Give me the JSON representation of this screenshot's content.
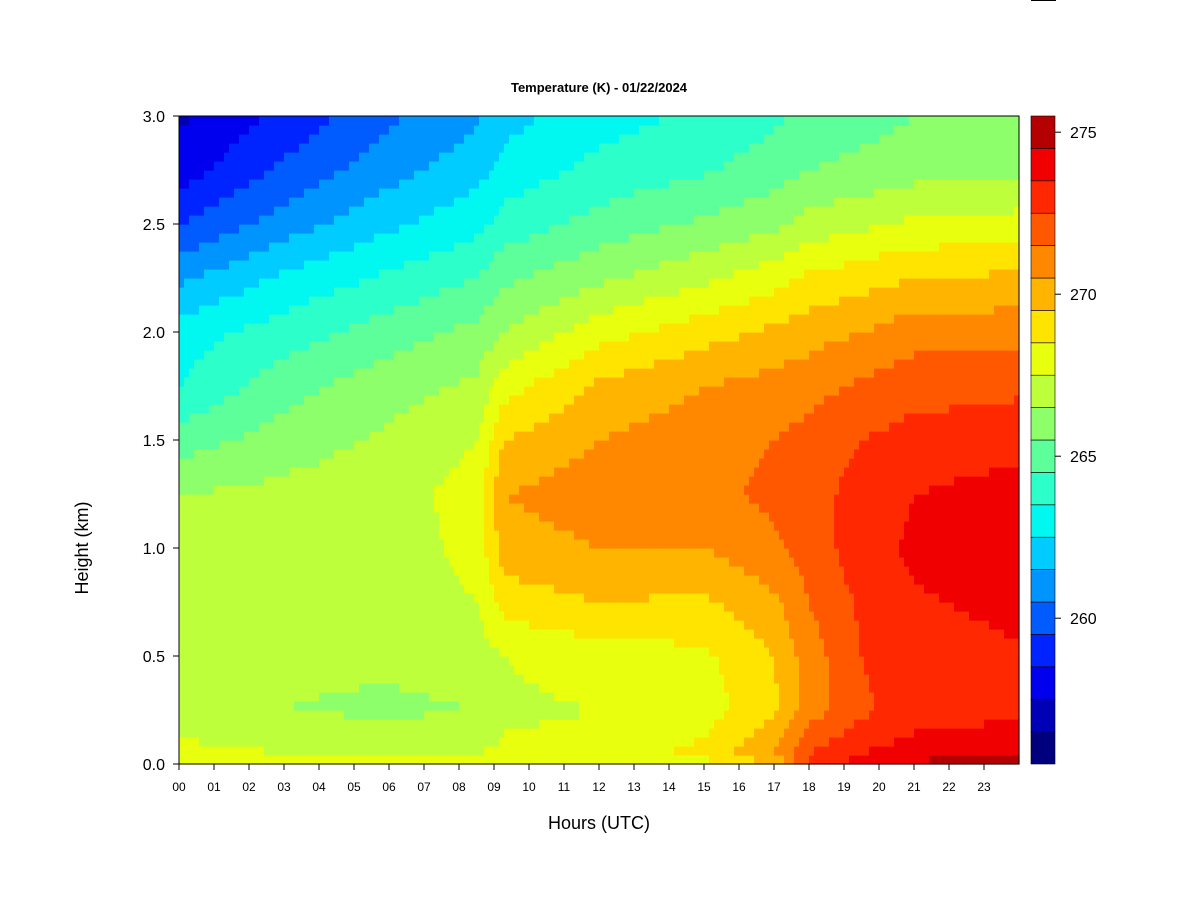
{
  "chart_data": {
    "type": "heatmap",
    "title": "Temperature (K) - 01/22/2024",
    "xlabel": "Hours (UTC)",
    "ylabel": "Height (km)",
    "x_ticks": [
      "00",
      "01",
      "02",
      "03",
      "04",
      "05",
      "06",
      "07",
      "08",
      "09",
      "10",
      "11",
      "12",
      "13",
      "14",
      "15",
      "16",
      "17",
      "18",
      "19",
      "20",
      "21",
      "22",
      "23"
    ],
    "y_ticks": [
      "0.0",
      "0.5",
      "1.0",
      "1.5",
      "2.0",
      "2.5",
      "3.0"
    ],
    "xlim": [
      0,
      24
    ],
    "ylim": [
      0,
      3.0
    ],
    "colorbar": {
      "ticks": [
        "260",
        "265",
        "270",
        "275"
      ],
      "range": [
        256,
        276
      ],
      "levels": [
        256,
        257,
        258,
        259,
        260,
        261,
        262,
        263,
        264,
        265,
        266,
        267,
        268,
        269,
        270,
        271,
        272,
        273,
        274,
        275,
        276
      ],
      "colors": [
        "#00007f",
        "#0000b6",
        "#0000ee",
        "#0024ff",
        "#005cff",
        "#0094ff",
        "#00ccff",
        "#00f8f0",
        "#2cffca",
        "#5cff9a",
        "#8cff6a",
        "#bcff3a",
        "#e8ff0e",
        "#ffe400",
        "#ffb400",
        "#ff8800",
        "#ff5800",
        "#ff2800",
        "#f00000",
        "#b40000"
      ]
    },
    "hours": [
      0,
      3,
      6,
      8.5,
      9.3,
      12,
      15,
      17,
      18,
      19.5,
      21,
      23.8
    ],
    "heights_km": [
      0.0,
      0.05,
      0.25,
      0.5,
      0.75,
      1.0,
      1.25,
      1.5,
      1.75,
      2.0,
      2.25,
      2.5,
      2.75,
      3.0
    ],
    "values": [
      [
        269.0,
        268.5,
        268.2,
        268.0,
        268.0,
        268.0,
        268.5,
        270.0,
        273.0,
        274.5,
        275.3,
        275.5
      ],
      [
        268.3,
        268.0,
        268.0,
        268.0,
        268.2,
        268.4,
        269.3,
        271.0,
        273.0,
        274.0,
        274.5,
        274.7
      ],
      [
        267.4,
        267.0,
        266.8,
        267.0,
        267.8,
        268.0,
        268.5,
        269.8,
        271.5,
        272.8,
        273.5,
        273.8
      ],
      [
        267.5,
        267.2,
        267.2,
        267.5,
        268.0,
        268.5,
        268.8,
        270.0,
        271.5,
        273.0,
        273.6,
        273.9
      ],
      [
        267.4,
        267.3,
        267.4,
        268.0,
        269.5,
        270.0,
        269.8,
        270.8,
        272.0,
        273.2,
        273.9,
        274.2
      ],
      [
        267.2,
        267.3,
        267.5,
        268.3,
        270.5,
        271.0,
        271.0,
        271.8,
        272.5,
        273.5,
        274.2,
        274.6
      ],
      [
        267.0,
        267.3,
        267.6,
        268.4,
        271.0,
        271.6,
        271.8,
        272.2,
        272.6,
        273.4,
        274.0,
        274.4
      ],
      [
        265.5,
        266.5,
        267.2,
        268.0,
        270.0,
        271.0,
        271.6,
        272.0,
        272.4,
        273.0,
        273.4,
        273.6
      ],
      [
        264.0,
        265.6,
        266.6,
        267.2,
        268.6,
        270.2,
        271.0,
        271.4,
        271.6,
        272.2,
        272.6,
        272.8
      ],
      [
        263.5,
        264.5,
        265.5,
        266.3,
        267.0,
        268.6,
        269.6,
        270.2,
        270.6,
        271.0,
        271.6,
        271.6
      ],
      [
        261.8,
        263.2,
        264.2,
        265.0,
        265.8,
        266.8,
        267.8,
        268.6,
        269.2,
        269.6,
        270.0,
        270.2
      ],
      [
        260.0,
        261.5,
        262.8,
        263.7,
        264.4,
        265.4,
        266.2,
        266.8,
        267.4,
        267.8,
        268.2,
        268.4
      ],
      [
        258.5,
        260.2,
        261.6,
        262.6,
        263.4,
        264.3,
        264.9,
        265.5,
        266.0,
        266.3,
        266.6,
        266.8
      ],
      [
        257.8,
        259.3,
        260.8,
        261.8,
        262.6,
        263.6,
        264.2,
        264.8,
        265.2,
        265.6,
        266.0,
        266.2
      ]
    ]
  }
}
